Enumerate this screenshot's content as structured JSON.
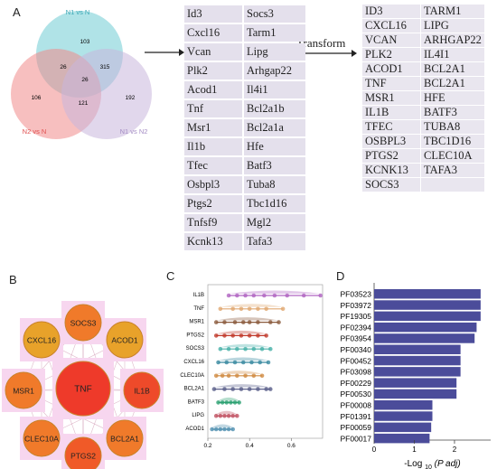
{
  "panels": {
    "A": "A",
    "B": "B",
    "C": "C",
    "D": "D"
  },
  "venn": {
    "sets": [
      {
        "name": "N1 vs N",
        "color": "#8ed7dd"
      },
      {
        "name": "N2 vs N",
        "color": "#f08a8a"
      },
      {
        "name": "N1 vs N2",
        "color": "#c8b7dc"
      }
    ],
    "regions": {
      "n1_only": "103",
      "n2_only": "106",
      "n1n2_only": "192",
      "n1_n2": "26",
      "n1_n1n2": "315",
      "all": "26",
      "n2_n1n2": "121"
    }
  },
  "transform_label": "Transform",
  "genes_mouse": {
    "col1": [
      "Id3",
      "Cxcl16",
      "Vcan",
      "Plk2",
      "Acod1",
      "Tnf",
      "Msr1",
      "Il1b",
      "Tfec",
      "Osbpl3",
      "Ptgs2",
      "Tnfsf9",
      "Kcnk13"
    ],
    "col2": [
      "Socs3",
      "Tarm1",
      "Lipg",
      "Arhgap22",
      "Il4i1",
      "Bcl2a1b",
      "Bcl2a1a",
      "Hfe",
      "Batf3",
      "Tuba8",
      "Tbc1d16",
      "Mgl2",
      "Tafa3"
    ]
  },
  "genes_human": {
    "col1": [
      "ID3",
      "CXCL16",
      "VCAN",
      "PLK2",
      "ACOD1",
      "TNF",
      "MSR1",
      "IL1B",
      "TFEC",
      "OSBPL3",
      "PTGS2",
      "KCNK13",
      "SOCS3"
    ],
    "col2": [
      "TARM1",
      "LIPG",
      "ARHGAP22",
      "IL4I1",
      "BCL2A1",
      "BCL2A1",
      "HFE",
      "BATF3",
      "TUBA8",
      "TBC1D16",
      "CLEC10A",
      "TAFA3",
      ""
    ]
  },
  "network": {
    "center": "TNF",
    "nodes": [
      "SOCS3",
      "ACOD1",
      "IL1B",
      "BCL2A1",
      "PTGS2",
      "CLEC10A",
      "MSR1",
      "CXCL16",
      "TNF"
    ]
  },
  "chart_data": [
    {
      "type": "scatter",
      "title": "",
      "categories": [
        "IL1B",
        "TNF",
        "MSR1",
        "PTGS2",
        "SOCS3",
        "CXCL16",
        "CLEC10A",
        "BCL2A1",
        "BATF3",
        "LIPG",
        "ACOD1"
      ],
      "xticks": [
        "0.2",
        "0.4",
        "0.6"
      ],
      "xlim": [
        0.2,
        0.75
      ],
      "colors": [
        "#b065c2",
        "#e0a870",
        "#8a5a3c",
        "#c0392b",
        "#46b0a8",
        "#3a8aa0",
        "#d08a40",
        "#5a5f8a",
        "#2aa070",
        "#c05060",
        "#5090b0"
      ],
      "series": [
        {
          "values": [
            0.3,
            0.34,
            0.38,
            0.42,
            0.47,
            0.52,
            0.58,
            0.66,
            0.74
          ]
        },
        {
          "values": [
            0.26,
            0.32,
            0.36,
            0.4,
            0.44,
            0.48,
            0.56
          ]
        },
        {
          "values": [
            0.24,
            0.28,
            0.33,
            0.37,
            0.4,
            0.44,
            0.5,
            0.54
          ]
        },
        {
          "values": [
            0.24,
            0.28,
            0.32,
            0.36,
            0.4,
            0.44,
            0.48
          ]
        },
        {
          "values": [
            0.26,
            0.3,
            0.34,
            0.38,
            0.42,
            0.46,
            0.5
          ]
        },
        {
          "values": [
            0.25,
            0.29,
            0.33,
            0.37,
            0.41,
            0.45,
            0.49
          ]
        },
        {
          "values": [
            0.24,
            0.27,
            0.3,
            0.34,
            0.38,
            0.42,
            0.46
          ]
        },
        {
          "values": [
            0.23,
            0.28,
            0.32,
            0.36,
            0.4,
            0.44,
            0.48,
            0.5
          ]
        },
        {
          "values": [
            0.25,
            0.27,
            0.29,
            0.31,
            0.33,
            0.35
          ]
        },
        {
          "values": [
            0.24,
            0.26,
            0.28,
            0.3,
            0.32,
            0.34
          ]
        },
        {
          "values": [
            0.22,
            0.24,
            0.26,
            0.28,
            0.3,
            0.32
          ]
        }
      ]
    },
    {
      "type": "bar",
      "title": "",
      "categories": [
        "PF03523",
        "PF03972",
        "PF19305",
        "PF02394",
        "PF03954",
        "PF00340",
        "PF00452",
        "PF03098",
        "PF00229",
        "PF00530",
        "PF00008",
        "PF01391",
        "PF00059",
        "PF00017"
      ],
      "values": [
        2.65,
        2.65,
        2.65,
        2.55,
        2.5,
        2.15,
        2.15,
        2.15,
        2.05,
        2.05,
        1.45,
        1.45,
        1.42,
        1.38
      ],
      "xticks": [
        "0",
        "1",
        "2"
      ],
      "xlim": [
        0,
        2.9
      ],
      "color": "#4b4c9a",
      "xlabel_main": "-Log",
      "xlabel_sub": "10",
      "xlabel_italic": "(P adj)"
    }
  ]
}
